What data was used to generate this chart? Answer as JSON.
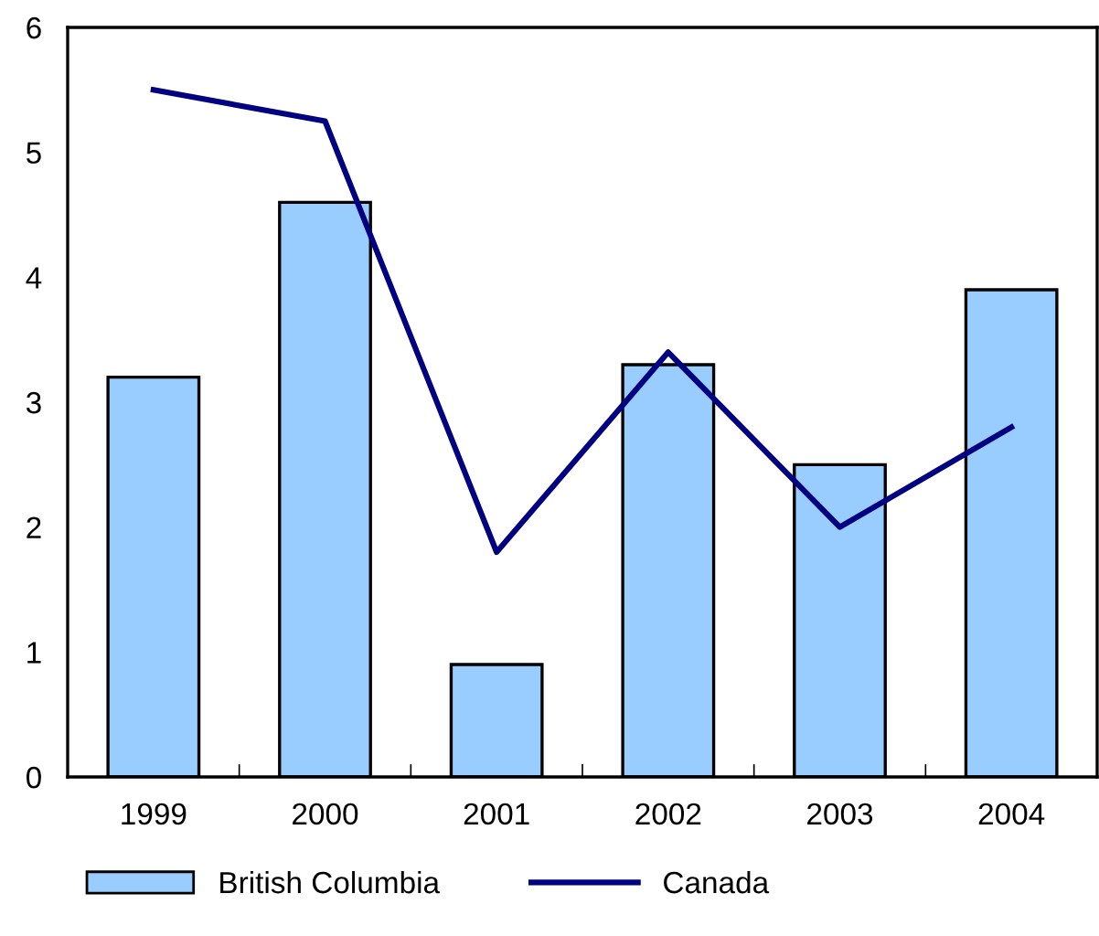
{
  "chart_data": {
    "type": "bar",
    "categories": [
      "1999",
      "2000",
      "2001",
      "2002",
      "2003",
      "2004"
    ],
    "series": [
      {
        "name": "British Columbia",
        "color": "#99ccff",
        "values": [
          3.2,
          4.6,
          0.9,
          3.3,
          2.5,
          3.9
        ]
      },
      {
        "name": "Canada",
        "type": "line",
        "color": "#000080",
        "values": [
          5.5,
          5.25,
          1.8,
          3.4,
          2.0,
          2.8
        ]
      }
    ],
    "ylim": [
      0,
      6
    ],
    "yticks": [
      0,
      1,
      2,
      3,
      4,
      5,
      6
    ],
    "grid": false,
    "legend": "bottom",
    "marker": "none",
    "line_style": "solid"
  }
}
